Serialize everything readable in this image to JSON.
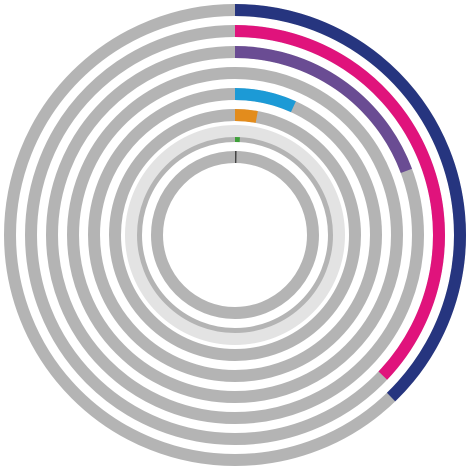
{
  "chart_data": {
    "type": "radial-progress",
    "start_angle_deg": 0,
    "direction": "clockwise",
    "max": 100,
    "track_color": "#b4b4b4",
    "center_ring_color": "#e3e3e3",
    "rings": [
      {
        "value": 37.8,
        "color": "#26357f"
      },
      {
        "value": 37.1,
        "color": "#e0137c"
      },
      {
        "value": 19.3,
        "color": "#6a4c93"
      },
      {
        "value": 0,
        "color": "#b4b4b4"
      },
      {
        "value": 6.8,
        "color": "#1c9ad6"
      },
      {
        "value": 2.9,
        "color": "#e38c1c"
      },
      {
        "value": 0.8,
        "color": "#3ea03a"
      },
      {
        "value": 0.3,
        "color": "#444444"
      }
    ]
  }
}
